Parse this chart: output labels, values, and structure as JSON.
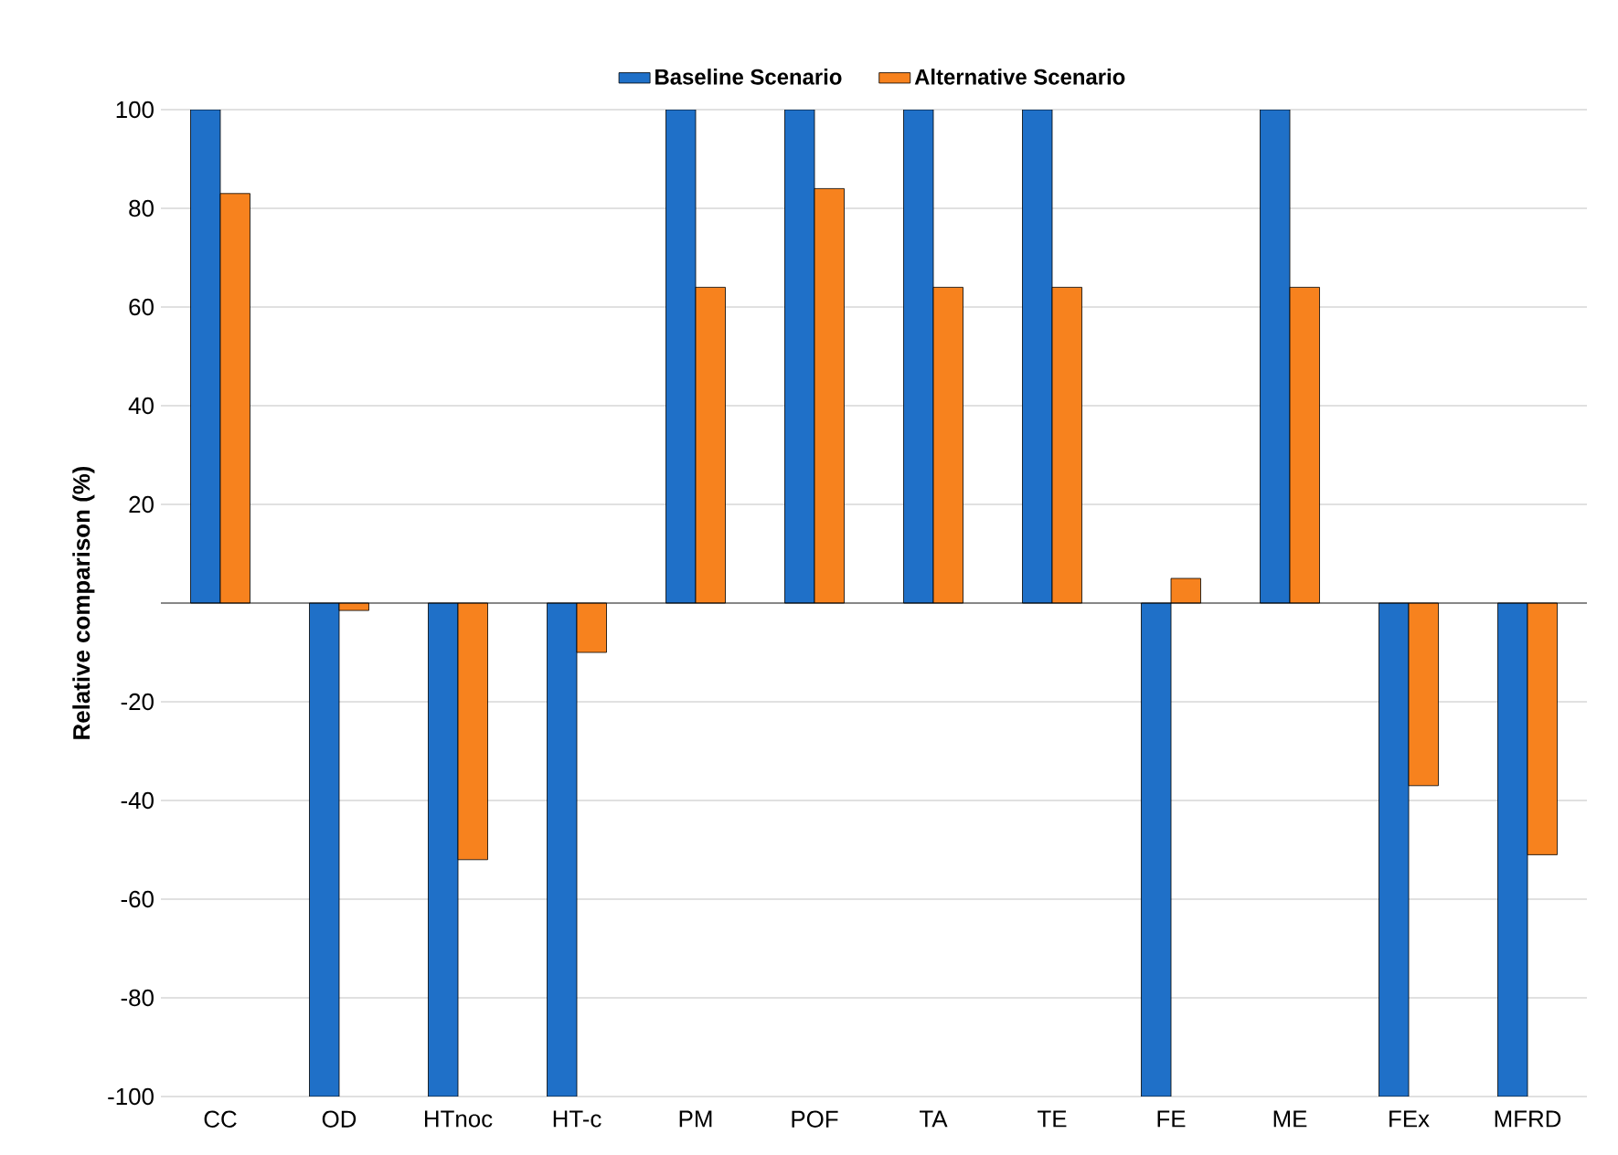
{
  "chart_data": {
    "type": "bar",
    "ylabel": "Relative comparison (%)",
    "categories": [
      "CC",
      "OD",
      "HTnoc",
      "HT-c",
      "PM",
      "POF",
      "TA",
      "TE",
      "FE",
      "ME",
      "FEx",
      "MFRD"
    ],
    "series": [
      {
        "name": "Baseline Scenario",
        "color": "#1f70c8",
        "values": [
          100,
          -100,
          -100,
          -100,
          100,
          100,
          100,
          100,
          -100,
          100,
          -100,
          -100
        ]
      },
      {
        "name": "Alternative Scenario",
        "color": "#f7821e",
        "values": [
          83,
          -1.5,
          -52,
          -10,
          64,
          84,
          64,
          64,
          5,
          64,
          -37,
          -51
        ]
      }
    ],
    "ylim": [
      -100,
      100
    ],
    "yticks": [
      -100,
      -80,
      -60,
      -40,
      -20,
      {
        "value": 0,
        "label": null
      },
      20,
      40,
      60,
      80,
      100
    ],
    "grid": "y",
    "legend": "top"
  }
}
